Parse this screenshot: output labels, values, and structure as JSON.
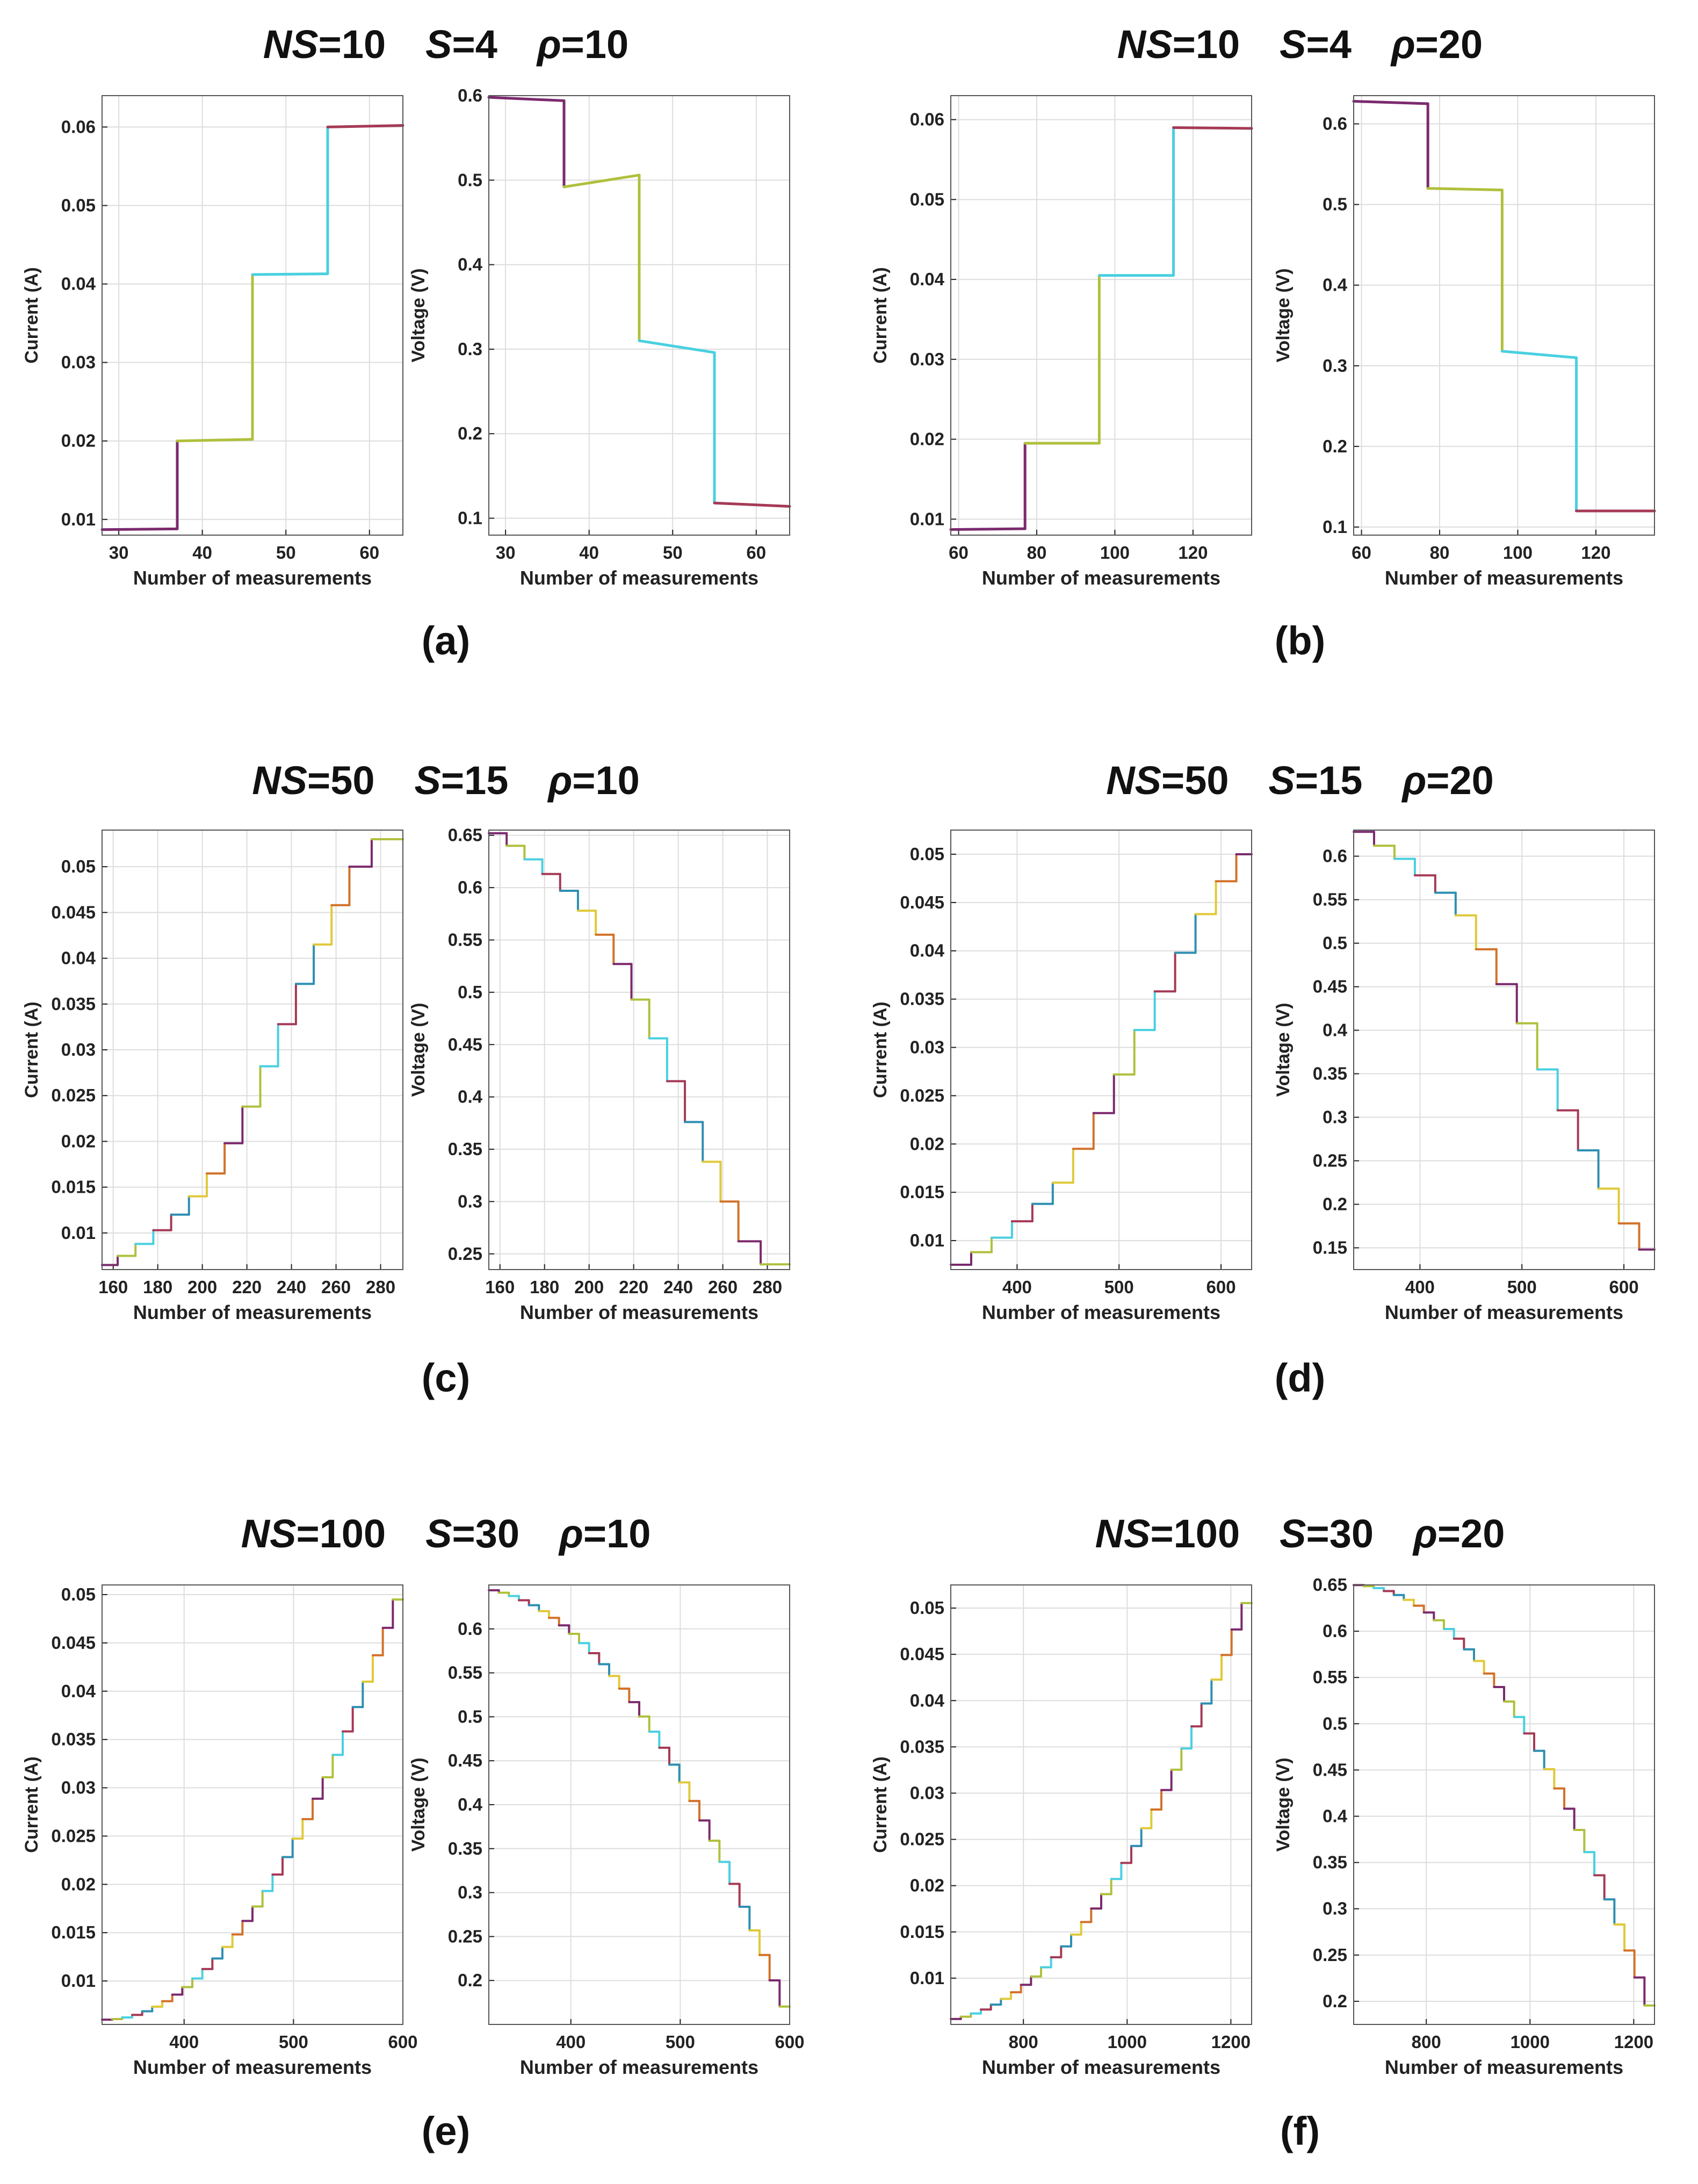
{
  "figure": {
    "palette": [
      "#7b2a6e",
      "#b0c03c",
      "#49d0e0",
      "#a53a56",
      "#2f8fb2",
      "#e0c93a",
      "#d2722a"
    ],
    "axis_color": "#222222",
    "grid_color": "#dddddd"
  },
  "panels": [
    {
      "label": "(a)",
      "title": {
        "ns": "10",
        "s": "4",
        "rho": "10"
      },
      "current_palette": [
        0,
        1,
        2,
        3
      ],
      "voltage_palette": [
        0,
        1,
        2,
        3
      ]
    },
    {
      "label": "(b)",
      "title": {
        "ns": "10",
        "s": "4",
        "rho": "20"
      },
      "current_palette": [
        0,
        1,
        2,
        3
      ],
      "voltage_palette": [
        0,
        1,
        2,
        3
      ]
    },
    {
      "label": "(c)",
      "title": {
        "ns": "50",
        "s": "15",
        "rho": "10"
      },
      "current_palette": [
        0,
        1,
        2,
        3,
        4,
        5,
        6
      ],
      "voltage_palette": [
        0,
        1,
        2,
        3,
        4,
        5,
        6
      ]
    },
    {
      "label": "(d)",
      "title": {
        "ns": "50",
        "s": "15",
        "rho": "20"
      },
      "current_palette": [
        0,
        1,
        2,
        3,
        4,
        5,
        6
      ],
      "voltage_palette": [
        0,
        1,
        2,
        3,
        4,
        5,
        6
      ]
    },
    {
      "label": "(e)",
      "title": {
        "ns": "100",
        "s": "30",
        "rho": "10"
      },
      "current_palette": [
        0,
        1,
        2,
        3,
        4,
        5,
        6
      ],
      "voltage_palette": [
        0,
        1,
        2,
        3,
        4,
        5,
        6
      ]
    },
    {
      "label": "(f)",
      "title": {
        "ns": "100",
        "s": "30",
        "rho": "20"
      },
      "current_palette": [
        0,
        1,
        2,
        3,
        4,
        5,
        6
      ],
      "voltage_palette": [
        0,
        1,
        2,
        3,
        4,
        5,
        6
      ]
    }
  ],
  "chart_data": [
    {
      "panel": "(a)",
      "type": "line",
      "xlabel": "Number of measurements",
      "ylabel": "Current (A)",
      "xlim": [
        28,
        64
      ],
      "ylim": [
        0.008,
        0.064
      ],
      "xticks": [
        30,
        40,
        50,
        60
      ],
      "xtick_labels": [
        "30",
        "40",
        "50",
        "60"
      ],
      "yticks": [
        0.01,
        0.02,
        0.03,
        0.04,
        0.05,
        0.06
      ],
      "ytick_labels": [
        "0.01",
        "0.02",
        "0.03",
        "0.04",
        "0.05",
        "0.06"
      ],
      "steps": [
        [
          28,
          37,
          0.0087,
          0.0088
        ],
        [
          37,
          46,
          0.02,
          0.0202
        ],
        [
          46,
          55,
          0.0412,
          0.0413
        ],
        [
          55,
          64,
          0.06,
          0.0602
        ]
      ]
    },
    {
      "panel": "(a)",
      "type": "line",
      "xlabel": "Number of measurements",
      "ylabel": "Voltage (V)",
      "xlim": [
        28,
        64
      ],
      "ylim": [
        0.08,
        0.6
      ],
      "xticks": [
        30,
        40,
        50,
        60
      ],
      "xtick_labels": [
        "30",
        "40",
        "50",
        "60"
      ],
      "yticks": [
        0.1,
        0.2,
        0.3,
        0.4,
        0.5,
        0.6
      ],
      "ytick_labels": [
        "0.1",
        "0.2",
        "0.3",
        "0.4",
        "0.5",
        "0.6"
      ],
      "steps": [
        [
          28,
          37,
          0.598,
          0.594
        ],
        [
          37,
          46,
          0.492,
          0.506
        ],
        [
          46,
          55,
          0.31,
          0.296
        ],
        [
          55,
          64,
          0.118,
          0.114
        ]
      ]
    },
    {
      "panel": "(b)",
      "type": "line",
      "xlabel": "Number of measurements",
      "ylabel": "Current (A)",
      "xlim": [
        58,
        135
      ],
      "ylim": [
        0.008,
        0.063
      ],
      "xticks": [
        60,
        80,
        100,
        120
      ],
      "xtick_labels": [
        "60",
        "80",
        "100",
        "120"
      ],
      "yticks": [
        0.01,
        0.02,
        0.03,
        0.04,
        0.05,
        0.06
      ],
      "ytick_labels": [
        "0.01",
        "0.02",
        "0.03",
        "0.04",
        "0.05",
        "0.06"
      ],
      "steps": [
        [
          58,
          77,
          0.0087,
          0.0088
        ],
        [
          77,
          96,
          0.0195,
          0.0195
        ],
        [
          96,
          115,
          0.0405,
          0.0405
        ],
        [
          115,
          135,
          0.059,
          0.0589
        ]
      ]
    },
    {
      "panel": "(b)",
      "type": "line",
      "xlabel": "Number of measurements",
      "ylabel": "Voltage (V)",
      "xlim": [
        58,
        135
      ],
      "ylim": [
        0.09,
        0.635
      ],
      "xticks": [
        60,
        80,
        100,
        120
      ],
      "xtick_labels": [
        "60",
        "80",
        "100",
        "120"
      ],
      "yticks": [
        0.1,
        0.2,
        0.3,
        0.4,
        0.5,
        0.6
      ],
      "ytick_labels": [
        "0.1",
        "0.2",
        "0.3",
        "0.4",
        "0.5",
        "0.6"
      ],
      "steps": [
        [
          58,
          77,
          0.628,
          0.625
        ],
        [
          77,
          96,
          0.52,
          0.518
        ],
        [
          96,
          115,
          0.318,
          0.31
        ],
        [
          115,
          135,
          0.12,
          0.12
        ]
      ]
    },
    {
      "panel": "(c)",
      "type": "line",
      "xlabel": "Number of measurements",
      "ylabel": "Current (A)",
      "xlim": [
        155,
        290
      ],
      "ylim": [
        0.006,
        0.054
      ],
      "xticks": [
        160,
        180,
        200,
        220,
        240,
        260,
        280
      ],
      "xtick_labels": [
        "160",
        "180",
        "200",
        "220",
        "240",
        "260",
        "280"
      ],
      "yticks": [
        0.01,
        0.015,
        0.02,
        0.025,
        0.03,
        0.035,
        0.04,
        0.045,
        0.05
      ],
      "ytick_labels": [
        "0.01",
        "0.015",
        "0.02",
        "0.025",
        "0.03",
        "0.035",
        "0.04",
        "0.045",
        "0.05"
      ],
      "steps": [
        [
          155,
          162,
          0.0065,
          0.0065
        ],
        [
          162,
          170,
          0.0075,
          0.0075
        ],
        [
          170,
          178,
          0.0088,
          0.0088
        ],
        [
          178,
          186,
          0.0103,
          0.0103
        ],
        [
          186,
          194,
          0.012,
          0.012
        ],
        [
          194,
          202,
          0.014,
          0.014
        ],
        [
          202,
          210,
          0.0165,
          0.0165
        ],
        [
          210,
          218,
          0.0198,
          0.0198
        ],
        [
          218,
          226,
          0.0238,
          0.0238
        ],
        [
          226,
          234,
          0.0282,
          0.0282
        ],
        [
          234,
          242,
          0.0328,
          0.0328
        ],
        [
          242,
          250,
          0.0372,
          0.0372
        ],
        [
          250,
          258,
          0.0415,
          0.0415
        ],
        [
          258,
          266,
          0.0458,
          0.0458
        ],
        [
          266,
          276,
          0.05,
          0.05
        ],
        [
          276,
          290,
          0.053,
          0.053
        ]
      ]
    },
    {
      "panel": "(c)",
      "type": "line",
      "xlabel": "Number of measurements",
      "ylabel": "Voltage (V)",
      "xlim": [
        155,
        290
      ],
      "ylim": [
        0.235,
        0.655
      ],
      "xticks": [
        160,
        180,
        200,
        220,
        240,
        260,
        280
      ],
      "xtick_labels": [
        "160",
        "180",
        "200",
        "220",
        "240",
        "260",
        "280"
      ],
      "yticks": [
        0.25,
        0.3,
        0.35,
        0.4,
        0.45,
        0.5,
        0.55,
        0.6,
        0.65
      ],
      "ytick_labels": [
        "0.25",
        "0.3",
        "0.35",
        "0.4",
        "0.45",
        "0.5",
        "0.55",
        "0.6",
        "0.65"
      ],
      "steps": [
        [
          155,
          163,
          0.652,
          0.652
        ],
        [
          163,
          171,
          0.64,
          0.64
        ],
        [
          171,
          179,
          0.627,
          0.627
        ],
        [
          179,
          187,
          0.613,
          0.613
        ],
        [
          187,
          195,
          0.597,
          0.597
        ],
        [
          195,
          203,
          0.578,
          0.578
        ],
        [
          203,
          211,
          0.555,
          0.555
        ],
        [
          211,
          219,
          0.527,
          0.527
        ],
        [
          219,
          227,
          0.493,
          0.493
        ],
        [
          227,
          235,
          0.456,
          0.456
        ],
        [
          235,
          243,
          0.415,
          0.415
        ],
        [
          243,
          251,
          0.376,
          0.376
        ],
        [
          251,
          259,
          0.338,
          0.338
        ],
        [
          259,
          267,
          0.3,
          0.3
        ],
        [
          267,
          277,
          0.262,
          0.262
        ],
        [
          277,
          290,
          0.24,
          0.24
        ]
      ]
    },
    {
      "panel": "(d)",
      "type": "line",
      "xlabel": "Number of measurements",
      "ylabel": "Current (A)",
      "xlim": [
        335,
        630
      ],
      "ylim": [
        0.007,
        0.0525
      ],
      "xticks": [
        400,
        500,
        600
      ],
      "xtick_labels": [
        "400",
        "500",
        "600"
      ],
      "yticks": [
        0.01,
        0.015,
        0.02,
        0.025,
        0.03,
        0.035,
        0.04,
        0.045,
        0.05
      ],
      "ytick_labels": [
        "0.01",
        "0.015",
        "0.02",
        "0.025",
        "0.03",
        "0.035",
        "0.04",
        "0.045",
        "0.05"
      ],
      "steps": [
        [
          335,
          355,
          0.0075,
          0.0075
        ],
        [
          355,
          375,
          0.0088,
          0.0088
        ],
        [
          375,
          395,
          0.0103,
          0.0103
        ],
        [
          395,
          415,
          0.012,
          0.012
        ],
        [
          415,
          435,
          0.0138,
          0.0138
        ],
        [
          435,
          455,
          0.016,
          0.016
        ],
        [
          455,
          475,
          0.0195,
          0.0195
        ],
        [
          475,
          495,
          0.0232,
          0.0232
        ],
        [
          495,
          515,
          0.0272,
          0.0272
        ],
        [
          515,
          535,
          0.0318,
          0.0318
        ],
        [
          535,
          555,
          0.0358,
          0.0358
        ],
        [
          555,
          575,
          0.0398,
          0.0398
        ],
        [
          575,
          595,
          0.0438,
          0.0438
        ],
        [
          595,
          615,
          0.0472,
          0.0472
        ],
        [
          615,
          630,
          0.05,
          0.05
        ]
      ]
    },
    {
      "panel": "(d)",
      "type": "line",
      "xlabel": "Number of measurements",
      "ylabel": "Voltage (V)",
      "xlim": [
        335,
        630
      ],
      "ylim": [
        0.125,
        0.63
      ],
      "xticks": [
        400,
        500,
        600
      ],
      "xtick_labels": [
        "400",
        "500",
        "600"
      ],
      "yticks": [
        0.15,
        0.2,
        0.25,
        0.3,
        0.35,
        0.4,
        0.45,
        0.5,
        0.55,
        0.6
      ],
      "ytick_labels": [
        "0.15",
        "0.2",
        "0.25",
        "0.3",
        "0.35",
        "0.4",
        "0.45",
        "0.5",
        "0.55",
        "0.6"
      ],
      "steps": [
        [
          335,
          355,
          0.628,
          0.628
        ],
        [
          355,
          375,
          0.612,
          0.612
        ],
        [
          375,
          395,
          0.597,
          0.597
        ],
        [
          395,
          415,
          0.578,
          0.578
        ],
        [
          415,
          435,
          0.558,
          0.558
        ],
        [
          435,
          455,
          0.532,
          0.532
        ],
        [
          455,
          475,
          0.493,
          0.493
        ],
        [
          475,
          495,
          0.453,
          0.453
        ],
        [
          495,
          515,
          0.408,
          0.408
        ],
        [
          515,
          535,
          0.355,
          0.355
        ],
        [
          535,
          555,
          0.308,
          0.308
        ],
        [
          555,
          575,
          0.262,
          0.262
        ],
        [
          575,
          595,
          0.218,
          0.218
        ],
        [
          595,
          615,
          0.178,
          0.178
        ],
        [
          615,
          630,
          0.148,
          0.148
        ]
      ]
    },
    {
      "panel": "(e)",
      "type": "line",
      "xlabel": "Number of measurements",
      "ylabel": "Current (A)",
      "xlim": [
        325,
        600
      ],
      "ylim": [
        0.0055,
        0.051
      ],
      "xticks": [
        400,
        500,
        600
      ],
      "xtick_labels": [
        "400",
        "500",
        "600"
      ],
      "yticks": [
        0.01,
        0.015,
        0.02,
        0.025,
        0.03,
        0.035,
        0.04,
        0.045,
        0.05
      ],
      "ytick_labels": [
        "0.01",
        "0.015",
        "0.02",
        "0.025",
        "0.03",
        "0.035",
        "0.04",
        "0.045",
        "0.05"
      ],
      "curve": {
        "p1": [
          325,
          0.006
        ],
        "p2": [
          450,
          0.015
        ],
        "p3": [
          600,
          0.051
        ]
      },
      "n_steps": 30
    },
    {
      "panel": "(e)",
      "type": "line",
      "xlabel": "Number of measurements",
      "ylabel": "Voltage (V)",
      "xlim": [
        325,
        600
      ],
      "ylim": [
        0.15,
        0.65
      ],
      "xticks": [
        400,
        500,
        600
      ],
      "xtick_labels": [
        "400",
        "500",
        "600"
      ],
      "yticks": [
        0.2,
        0.25,
        0.3,
        0.35,
        0.4,
        0.45,
        0.5,
        0.55,
        0.6
      ],
      "ytick_labels": [
        "0.2",
        "0.25",
        "0.3",
        "0.35",
        "0.4",
        "0.45",
        "0.5",
        "0.55",
        "0.6"
      ],
      "curve": {
        "p1": [
          325,
          0.645
        ],
        "p2": [
          450,
          0.53
        ],
        "p3": [
          600,
          0.155
        ]
      },
      "n_steps": 30
    },
    {
      "panel": "(f)",
      "type": "line",
      "xlabel": "Number of measurements",
      "ylabel": "Current (A)",
      "xlim": [
        660,
        1240
      ],
      "ylim": [
        0.005,
        0.0525
      ],
      "xticks": [
        800,
        1000,
        1200
      ],
      "xtick_labels": [
        "800",
        "1000",
        "1200"
      ],
      "yticks": [
        0.01,
        0.015,
        0.02,
        0.025,
        0.03,
        0.035,
        0.04,
        0.045,
        0.05
      ],
      "ytick_labels": [
        "0.01",
        "0.015",
        "0.02",
        "0.025",
        "0.03",
        "0.035",
        "0.04",
        "0.045",
        "0.05"
      ],
      "curve": {
        "p1": [
          660,
          0.0055
        ],
        "p2": [
          920,
          0.016
        ],
        "p3": [
          1240,
          0.052
        ]
      },
      "n_steps": 30
    },
    {
      "panel": "(f)",
      "type": "line",
      "xlabel": "Number of measurements",
      "ylabel": "Voltage (V)",
      "xlim": [
        660,
        1240
      ],
      "ylim": [
        0.175,
        0.65
      ],
      "xticks": [
        800,
        1000,
        1200
      ],
      "xtick_labels": [
        "800",
        "1000",
        "1200"
      ],
      "yticks": [
        0.2,
        0.25,
        0.3,
        0.35,
        0.4,
        0.45,
        0.5,
        0.55,
        0.6,
        0.65
      ],
      "ytick_labels": [
        "0.2",
        "0.25",
        "0.3",
        "0.35",
        "0.4",
        "0.45",
        "0.5",
        "0.55",
        "0.6",
        "0.65"
      ],
      "curve": {
        "p1": [
          660,
          0.65
        ],
        "p2": [
          920,
          0.555
        ],
        "p3": [
          1240,
          0.18
        ]
      },
      "n_steps": 30
    }
  ]
}
